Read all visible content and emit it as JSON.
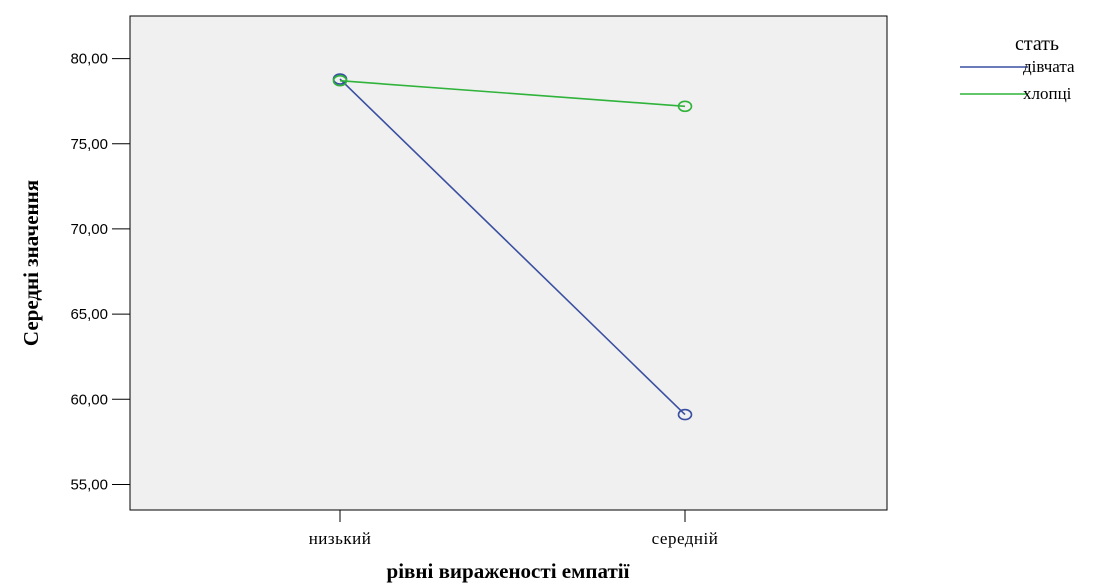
{
  "chart_data": {
    "type": "line",
    "xlabel": "рівні вираженості емпатії",
    "ylabel": "Середні значення",
    "categories": [
      "низький",
      "середній"
    ],
    "ylim": [
      53.5,
      82.5
    ],
    "yticks": [
      55,
      60,
      65,
      70,
      75,
      80
    ],
    "ytick_labels": [
      "55,00",
      "60,00",
      "65,00",
      "70,00",
      "75,00",
      "80,00"
    ],
    "grid": false,
    "legend_title": "стать",
    "legend_position": "top-right outside",
    "series": [
      {
        "name": "дівчата",
        "values": [
          78.8,
          59.1
        ],
        "color": "#3a4fa0"
      },
      {
        "name": "хлопці",
        "values": [
          78.7,
          77.2
        ],
        "color": "#2fb33a"
      }
    ]
  },
  "colors": {
    "plot_background": "#f0f0f0",
    "axis": "#000000"
  }
}
